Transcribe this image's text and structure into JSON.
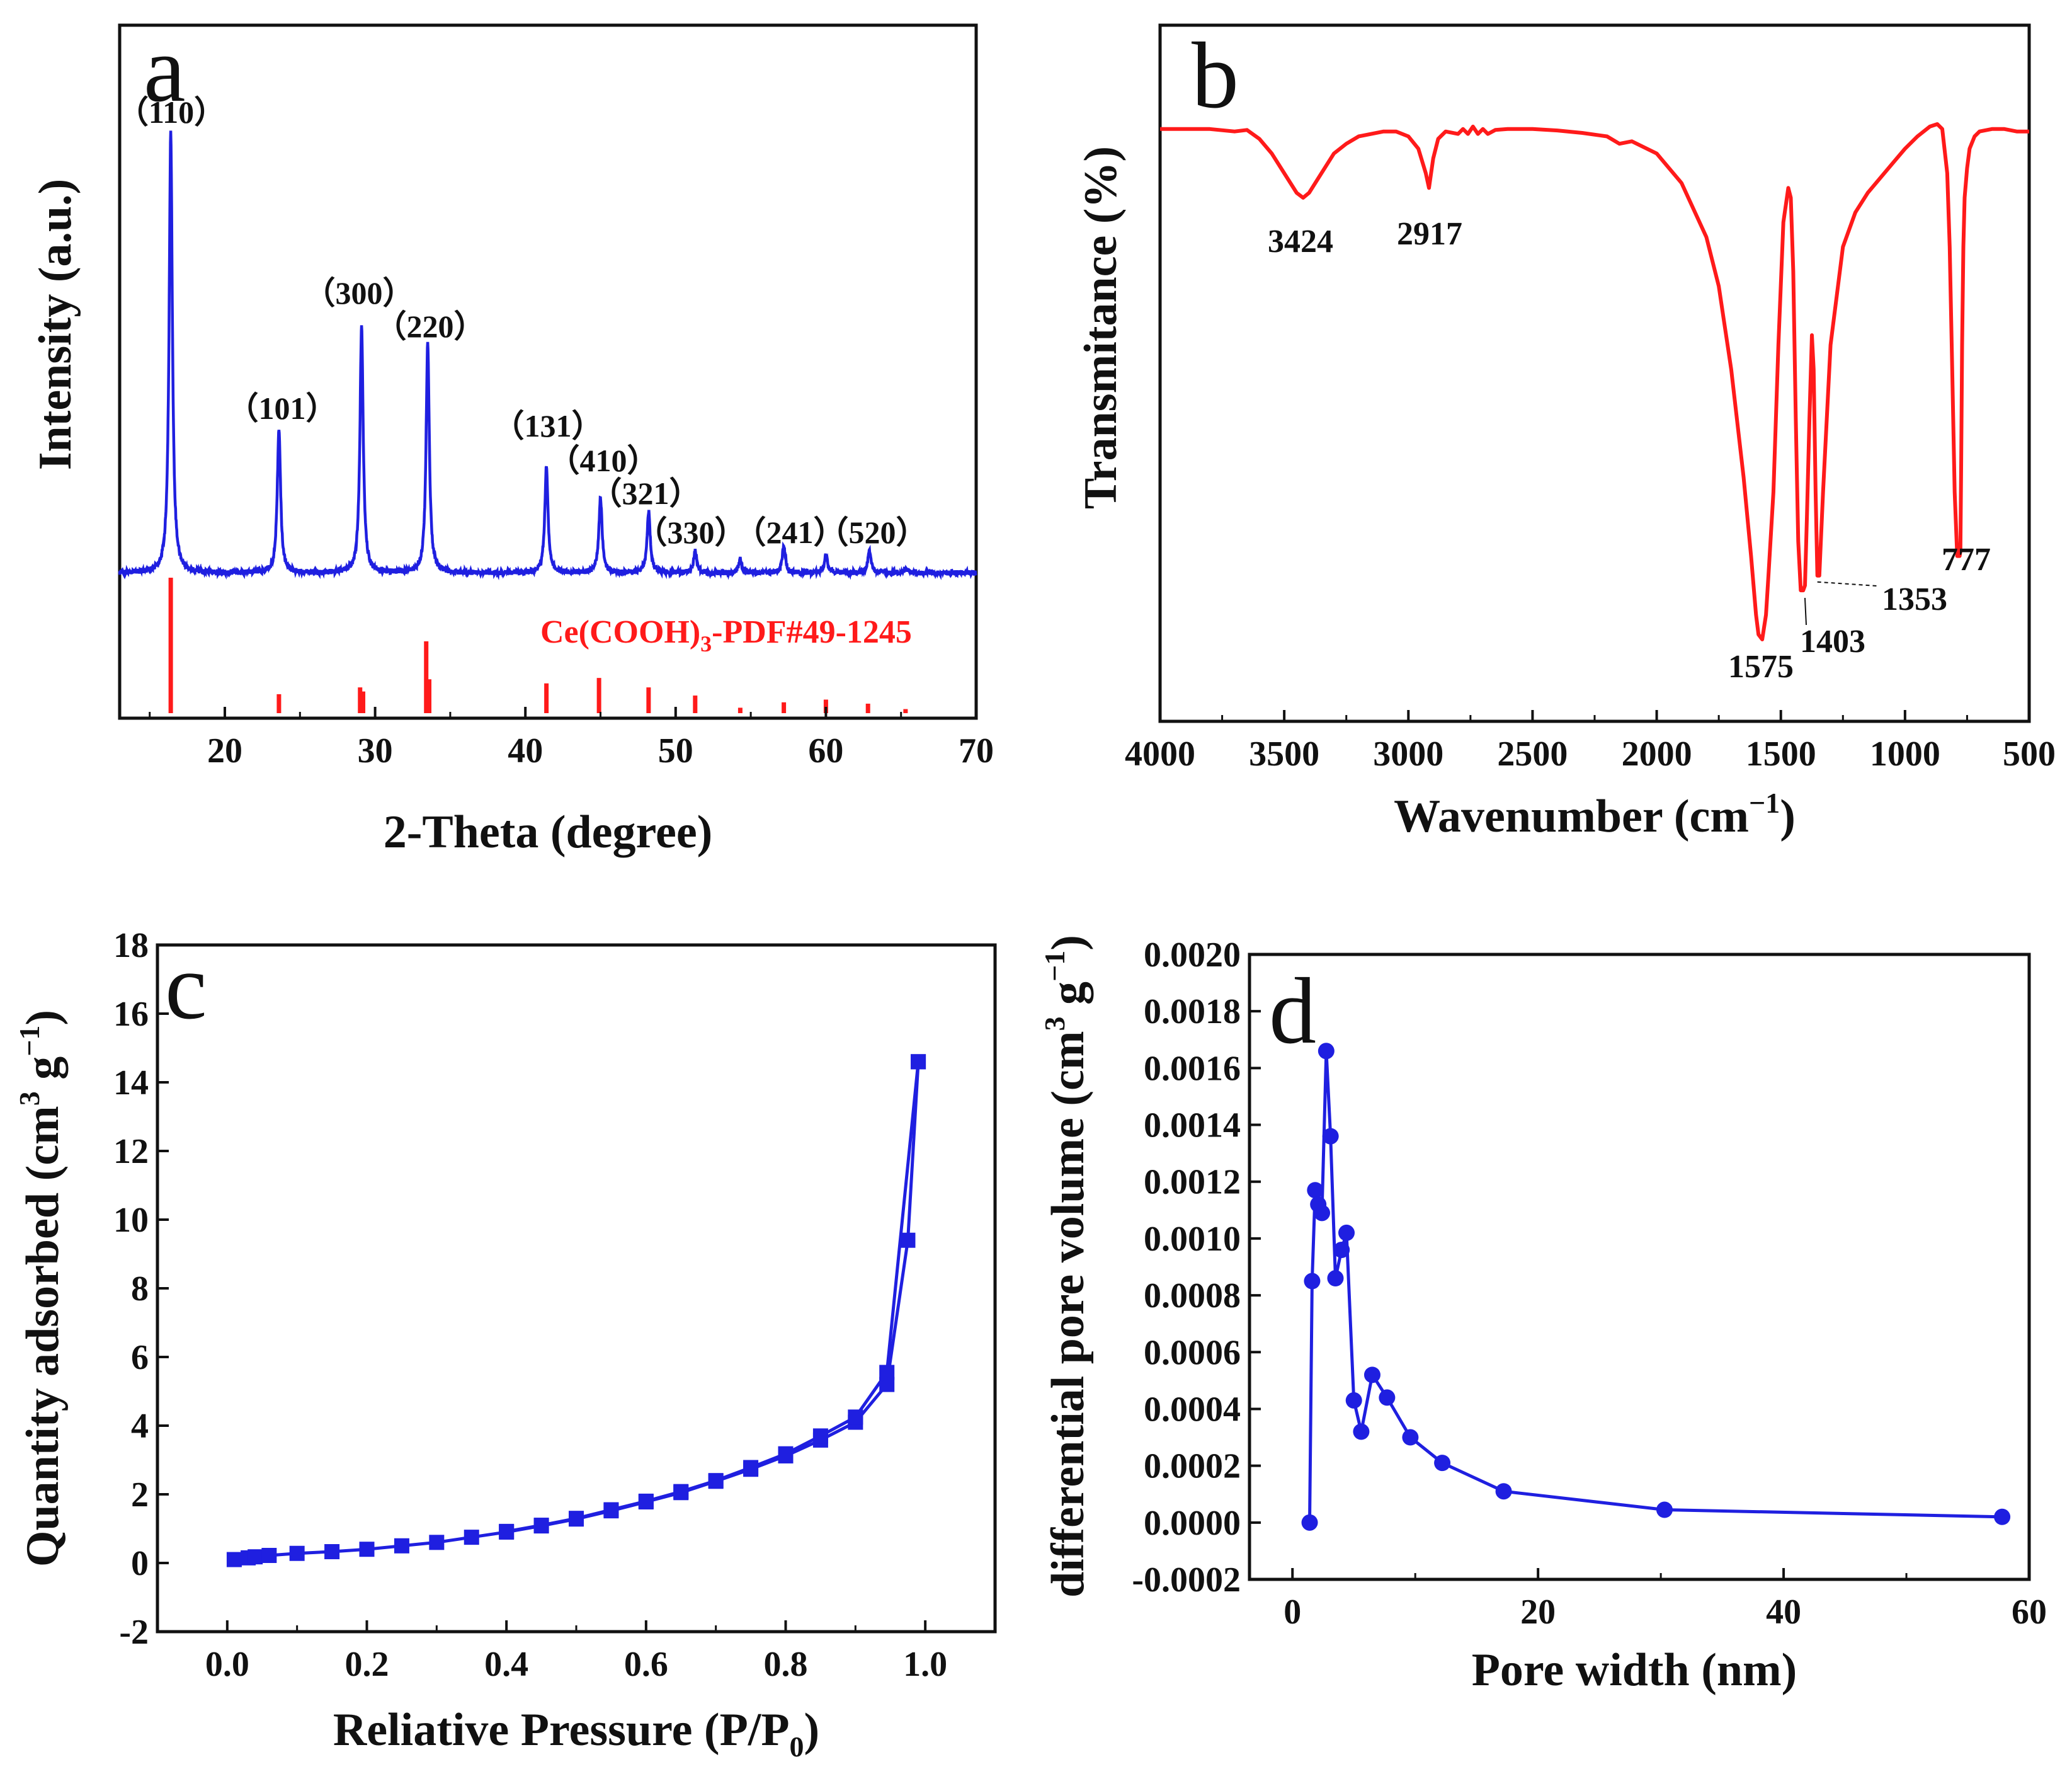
{
  "chart_data": [
    {
      "panel": "a",
      "type": "line",
      "title": "",
      "xlabel": "2-Theta (degree)",
      "ylabel": "Intensity (a.u.)",
      "xlim": [
        13,
        70
      ],
      "xticks": [
        20,
        30,
        40,
        50,
        60,
        70
      ],
      "y_ticks_shown": false,
      "color": "#1f1fe0",
      "reference_color": "#ff1a1a",
      "reference_label_main": "Ce(COOH)",
      "reference_label_sub": "3",
      "reference_label_tail": "-PDF#49-1245",
      "peaks": [
        {
          "two_theta": 16.4,
          "intensity": 1.0,
          "hkl": "（110）"
        },
        {
          "two_theta": 23.6,
          "intensity": 0.33,
          "hkl": "（101）"
        },
        {
          "two_theta": 29.1,
          "intensity": 0.56,
          "hkl": "（300）"
        },
        {
          "two_theta": 33.5,
          "intensity": 0.52,
          "hkl": "（220）"
        },
        {
          "two_theta": 41.4,
          "intensity": 0.24,
          "hkl": "（131）"
        },
        {
          "two_theta": 45.0,
          "intensity": 0.17,
          "hkl": "（410）"
        },
        {
          "two_theta": 48.2,
          "intensity": 0.14,
          "hkl": "（321）"
        },
        {
          "two_theta": 51.3,
          "intensity": 0.05,
          "hkl": "（330）"
        },
        {
          "two_theta": 54.3,
          "intensity": 0.03,
          "hkl": ""
        },
        {
          "two_theta": 57.2,
          "intensity": 0.06,
          "hkl": "（241）"
        },
        {
          "two_theta": 60.0,
          "intensity": 0.04,
          "hkl": ""
        },
        {
          "two_theta": 62.9,
          "intensity": 0.05,
          "hkl": "（520）"
        },
        {
          "two_theta": 65.3,
          "intensity": 0.01,
          "hkl": ""
        }
      ],
      "reference_lines": [
        {
          "two_theta": 16.4,
          "intensity": 1.0
        },
        {
          "two_theta": 23.6,
          "intensity": 0.14
        },
        {
          "two_theta": 29.0,
          "intensity": 0.19
        },
        {
          "two_theta": 29.2,
          "intensity": 0.16
        },
        {
          "two_theta": 33.4,
          "intensity": 0.53
        },
        {
          "two_theta": 33.6,
          "intensity": 0.25
        },
        {
          "two_theta": 41.4,
          "intensity": 0.22
        },
        {
          "two_theta": 44.9,
          "intensity": 0.26
        },
        {
          "two_theta": 48.2,
          "intensity": 0.19
        },
        {
          "two_theta": 51.3,
          "intensity": 0.13
        },
        {
          "two_theta": 54.3,
          "intensity": 0.04
        },
        {
          "two_theta": 57.2,
          "intensity": 0.08
        },
        {
          "two_theta": 60.0,
          "intensity": 0.1
        },
        {
          "two_theta": 62.8,
          "intensity": 0.07
        },
        {
          "two_theta": 65.3,
          "intensity": 0.03
        }
      ]
    },
    {
      "panel": "b",
      "type": "line",
      "title": "",
      "xlabel": "Wavenumber (cm",
      "xlabel_sup": "−1",
      "xlabel_tail": ")",
      "ylabel": "Transmitance (%)",
      "xlim": [
        4000,
        500
      ],
      "xticks": [
        4000,
        3500,
        3000,
        2500,
        2000,
        1500,
        1000,
        500
      ],
      "ylim": [
        0,
        100
      ],
      "y_ticks_shown": false,
      "color": "#ff1a1a",
      "x": [
        4000,
        3800,
        3700,
        3650,
        3600,
        3550,
        3500,
        3450,
        3424,
        3400,
        3350,
        3300,
        3250,
        3200,
        3100,
        3050,
        3000,
        2960,
        2930,
        2917,
        2900,
        2880,
        2850,
        2800,
        2780,
        2760,
        2740,
        2720,
        2700,
        2680,
        2650,
        2600,
        2500,
        2400,
        2300,
        2200,
        2150,
        2100,
        2000,
        1900,
        1800,
        1750,
        1700,
        1650,
        1620,
        1600,
        1590,
        1575,
        1560,
        1550,
        1530,
        1510,
        1490,
        1470,
        1460,
        1450,
        1440,
        1430,
        1420,
        1410,
        1403,
        1395,
        1385,
        1375,
        1368,
        1360,
        1353,
        1345,
        1330,
        1300,
        1250,
        1200,
        1150,
        1100,
        1050,
        1000,
        950,
        900,
        870,
        850,
        830,
        820,
        810,
        800,
        790,
        780,
        777,
        774,
        770,
        765,
        760,
        750,
        740,
        720,
        700,
        650,
        600,
        550,
        500
      ],
      "y": [
        99,
        99,
        98.5,
        98.8,
        97,
        94,
        90,
        86,
        85,
        86,
        90,
        94,
        96,
        97.5,
        98.5,
        98.5,
        97.5,
        95,
        90,
        87,
        93,
        97,
        98.5,
        98,
        99,
        98,
        99.5,
        98,
        99,
        98,
        98.8,
        99,
        99,
        98.7,
        98.2,
        97.5,
        96,
        96.5,
        94,
        88,
        77,
        67,
        50,
        28,
        12,
        0,
        -4,
        -5,
        0,
        8,
        25,
        55,
        80,
        87,
        85,
        70,
        40,
        15,
        5,
        5,
        6,
        20,
        40,
        57,
        50,
        25,
        8,
        8,
        25,
        55,
        75,
        82,
        86,
        89,
        92,
        95,
        97.5,
        99.5,
        100,
        99,
        90,
        75,
        50,
        25,
        12,
        12,
        13,
        30,
        55,
        75,
        85,
        91,
        95,
        97.5,
        98.5,
        99,
        99,
        98.5,
        98.5
      ],
      "annotations": [
        {
          "text": "3424",
          "x": 3424
        },
        {
          "text": "2917",
          "x": 2917
        },
        {
          "text": "1575",
          "x": 1575
        },
        {
          "text": "1403",
          "x": 1403
        },
        {
          "text": "1353",
          "x": 1353
        },
        {
          "text": "777",
          "x": 777
        }
      ]
    },
    {
      "panel": "c",
      "type": "line",
      "title": "",
      "xlabel": "Reliative Pressure (P/P",
      "xlabel_sub": "0",
      "xlabel_tail": ")",
      "ylabel": "Quantity adsorbed (cm",
      "ylabel_sup1": "3",
      "ylabel_mid": " g",
      "ylabel_sup2": "−1",
      "ylabel_tail": ")",
      "xlim": [
        -0.1,
        1.1
      ],
      "ylim": [
        -2,
        18
      ],
      "xticks": [
        "0.0",
        "0.2",
        "0.4",
        "0.6",
        "0.8",
        "1.0"
      ],
      "yticks": [
        "-2",
        "0",
        "2",
        "4",
        "6",
        "8",
        "10",
        "12",
        "14",
        "16",
        "18"
      ],
      "color": "#1f1fe0",
      "marker": "square",
      "series": [
        {
          "name": "adsorption",
          "x": [
            0.01,
            0.03,
            0.04,
            0.06,
            0.1,
            0.15,
            0.2,
            0.25,
            0.3,
            0.35,
            0.4,
            0.45,
            0.5,
            0.55,
            0.6,
            0.65,
            0.7,
            0.75,
            0.8,
            0.85,
            0.9,
            0.945,
            0.975,
            0.99
          ],
          "y": [
            0.1,
            0.15,
            0.18,
            0.22,
            0.28,
            0.33,
            0.4,
            0.5,
            0.6,
            0.75,
            0.9,
            1.08,
            1.28,
            1.52,
            1.78,
            2.05,
            2.38,
            2.73,
            3.12,
            3.58,
            4.1,
            5.2,
            9.4,
            14.6
          ]
        },
        {
          "name": "desorption",
          "x": [
            0.99,
            0.945,
            0.9,
            0.85,
            0.8,
            0.75,
            0.7,
            0.65,
            0.6,
            0.55,
            0.5,
            0.45,
            0.4
          ],
          "y": [
            14.6,
            5.55,
            4.25,
            3.7,
            3.18,
            2.78,
            2.4,
            2.08,
            1.8,
            1.55,
            1.3,
            1.1,
            0.92
          ]
        }
      ]
    },
    {
      "panel": "d",
      "type": "line",
      "title": "",
      "xlabel": "Pore width (nm)",
      "ylabel": "differential pore volume (cm",
      "ylabel_sup1": "3",
      "ylabel_mid": " g",
      "ylabel_sup2": "−1",
      "ylabel_tail": ")",
      "xlim": [
        -3.5,
        60
      ],
      "ylim": [
        -0.0002,
        0.002
      ],
      "xticks": [
        "0",
        "20",
        "40",
        "60"
      ],
      "yticks": [
        "-0.0002",
        "0.0000",
        "0.0002",
        "0.0004",
        "0.0006",
        "0.0008",
        "0.0010",
        "0.0012",
        "0.0014",
        "0.0016",
        "0.0018",
        "0.0020"
      ],
      "color": "#1f1fe0",
      "marker": "circle",
      "x": [
        1.4,
        1.6,
        1.85,
        2.1,
        2.4,
        2.75,
        3.1,
        3.5,
        4.0,
        4.4,
        5.0,
        5.6,
        6.5,
        7.7,
        9.6,
        12.2,
        17.2,
        30.3,
        57.8
      ],
      "y": [
        0.0,
        0.00085,
        0.00117,
        0.00112,
        0.00109,
        0.00166,
        0.00136,
        0.00086,
        0.00096,
        0.00102,
        0.00043,
        0.00032,
        0.00052,
        0.00044,
        0.0003,
        0.00021,
        0.00011,
        4.5e-05,
        2e-05
      ]
    }
  ],
  "panel_letters": [
    "a",
    "b",
    "c",
    "d"
  ]
}
